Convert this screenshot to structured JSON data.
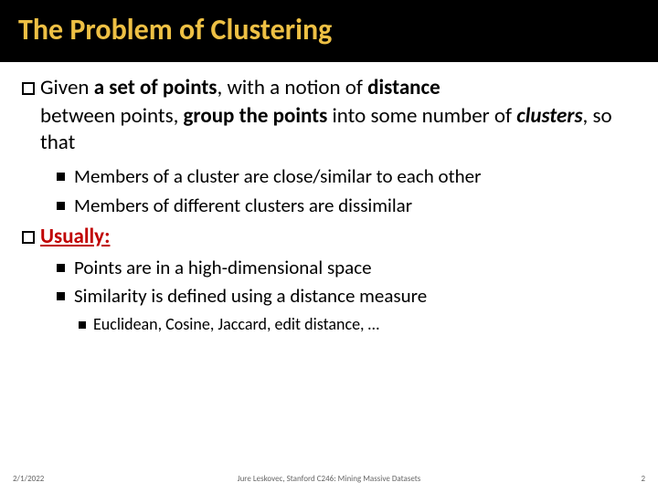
{
  "title": "The Problem of Clustering",
  "main1": {
    "pre": "Given ",
    "b1": "a set of points",
    "mid1": ", with a notion of ",
    "b2": "distance",
    "mid2": " between points, ",
    "b3": "group the points",
    "mid3": " into some number of ",
    "b4": "clusters",
    "post": ", so that"
  },
  "sub1a": "Members of a cluster are close/similar to each other",
  "sub1b": "Members of different clusters are dissimilar",
  "usually": "Usually:",
  "sub2a": "Points are in a high-dimensional space",
  "sub2b": "Similarity is defined using a distance measure",
  "sub3": "Euclidean, Cosine, Jaccard, edit distance, …",
  "footer": {
    "date": "2/1/2022",
    "center": "Jure Leskovec, Stanford C246: Mining Massive Datasets",
    "page": "2"
  },
  "colors": {
    "title_bg": "#000000",
    "title_fg": "#eec044",
    "accent": "#c00000",
    "body": "#000000",
    "footer": "#666666"
  }
}
